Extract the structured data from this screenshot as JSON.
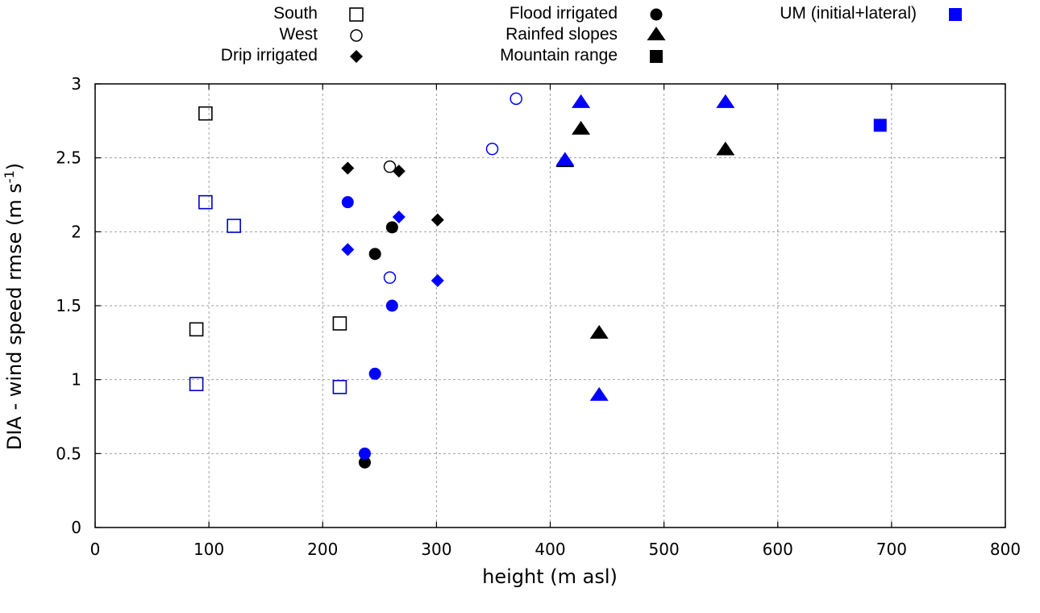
{
  "chart_data": {
    "type": "scatter",
    "title": "",
    "xlabel": "height (m asl)",
    "ylabel_main": "DIA - wind speed rmse (m s",
    "ylabel_sup": "-1",
    "ylabel_end": ")",
    "xlim": [
      0,
      800
    ],
    "ylim": [
      0,
      3
    ],
    "x_ticks": [
      "0",
      "100",
      "200",
      "300",
      "400",
      "500",
      "600",
      "700",
      "800"
    ],
    "x_tick_values": [
      0,
      100,
      200,
      300,
      400,
      500,
      600,
      700,
      800
    ],
    "y_ticks": [
      "0",
      "0.5",
      "1",
      "1.5",
      "2",
      "2.5",
      "3"
    ],
    "y_tick_values": [
      0,
      0.5,
      1,
      1.5,
      2,
      2.5,
      3
    ],
    "grid": true,
    "legend_placement": "top (outside plot)",
    "colors": {
      "black": "#000000",
      "blue": "#0000ff",
      "blue_outline": "#0000cc"
    },
    "legend": [
      {
        "label": "South",
        "marker": "open-square",
        "color": "#000000"
      },
      {
        "label": "West",
        "marker": "open-circle",
        "color": "#000000"
      },
      {
        "label": "Drip irrigated",
        "marker": "filled-diamond",
        "color": "#000000"
      },
      {
        "label": "Flood irrigated",
        "marker": "filled-circle",
        "color": "#000000"
      },
      {
        "label": "Rainfed slopes",
        "marker": "filled-triangle",
        "color": "#000000"
      },
      {
        "label": "Mountain range",
        "marker": "filled-square",
        "color": "#000000"
      },
      {
        "label": "UM (initial+lateral)",
        "marker": "filled-square",
        "color": "#0000ff"
      }
    ],
    "series": [
      {
        "name": "South",
        "marker": "open-square",
        "color": "#000000",
        "points": [
          [
            97,
            2.8
          ],
          [
            89,
            1.34
          ],
          [
            215,
            1.38
          ]
        ]
      },
      {
        "name": "South (blue)",
        "marker": "open-square",
        "color": "#0000cc",
        "points": [
          [
            97,
            2.2
          ],
          [
            122,
            2.04
          ],
          [
            89,
            0.97
          ],
          [
            215,
            0.95
          ]
        ]
      },
      {
        "name": "West",
        "marker": "open-circle",
        "color": "#000000",
        "points": [
          [
            259,
            2.44
          ]
        ]
      },
      {
        "name": "West (blue)",
        "marker": "open-circle",
        "color": "#0000ff",
        "points": [
          [
            370,
            2.9
          ],
          [
            349,
            2.56
          ],
          [
            259,
            1.69
          ]
        ]
      },
      {
        "name": "Drip irrigated",
        "marker": "filled-diamond",
        "color": "#000000",
        "points": [
          [
            222,
            2.43
          ],
          [
            267,
            2.41
          ],
          [
            301,
            2.08
          ]
        ]
      },
      {
        "name": "Drip irrigated (blue)",
        "marker": "filled-diamond",
        "color": "#0000ff",
        "points": [
          [
            222,
            1.88
          ],
          [
            267,
            2.1
          ],
          [
            301,
            1.67
          ]
        ]
      },
      {
        "name": "Flood irrigated",
        "marker": "filled-circle",
        "color": "#000000",
        "points": [
          [
            261,
            2.03
          ],
          [
            246,
            1.85
          ],
          [
            237,
            0.44
          ]
        ]
      },
      {
        "name": "Flood irrigated (blue)",
        "marker": "filled-circle",
        "color": "#0000ff",
        "points": [
          [
            222,
            2.2
          ],
          [
            261,
            1.5
          ],
          [
            246,
            1.04
          ],
          [
            237,
            0.5
          ]
        ]
      },
      {
        "name": "Rainfed slopes",
        "marker": "filled-triangle",
        "color": "#000000",
        "points": [
          [
            427,
            2.69
          ],
          [
            554,
            2.55
          ],
          [
            413,
            2.47
          ],
          [
            443,
            1.31
          ]
        ]
      },
      {
        "name": "Rainfed slopes (blue)",
        "marker": "filled-triangle",
        "color": "#0000ff",
        "points": [
          [
            427,
            2.87
          ],
          [
            554,
            2.87
          ],
          [
            413,
            2.48
          ],
          [
            443,
            0.89
          ]
        ]
      },
      {
        "name": "UM (initial+lateral)",
        "marker": "filled-square",
        "color": "#0000ff",
        "points": [
          [
            690,
            2.72
          ]
        ]
      }
    ]
  }
}
